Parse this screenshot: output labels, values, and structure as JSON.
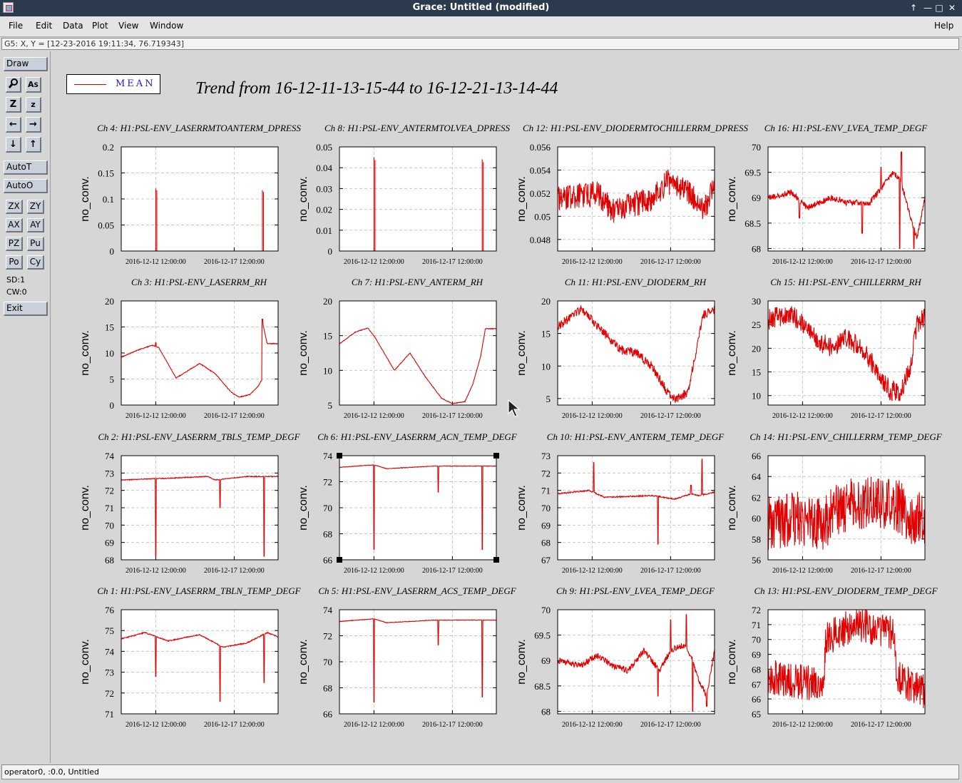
{
  "window": {
    "title": "Grace: Untitled (modified)",
    "controls": [
      "↑",
      "—",
      "□",
      "✕"
    ]
  },
  "menubar": {
    "items": [
      "File",
      "Edit",
      "Data",
      "Plot",
      "View",
      "Window"
    ],
    "help": "Help"
  },
  "locator": "G5: X, Y = [12-23-2016 19:11:34, 76.719343]",
  "toolbar": {
    "draw": "Draw",
    "icon_buttons": [
      "magnifier-icon",
      "text-tool-icon",
      "zoom-in-icon",
      "zoom-out-icon",
      "arrow-left-icon",
      "arrow-right-icon",
      "arrow-down-icon",
      "arrow-up-icon"
    ],
    "autot": "AutoT",
    "autoo": "AutoO",
    "small_buttons": [
      "ZX",
      "ZY",
      "AX",
      "AY",
      "PZ",
      "Pu",
      "Po",
      "Cy"
    ],
    "sd": "SD:1",
    "cw": "CW:0",
    "exit": "Exit"
  },
  "legend": {
    "label": "MEAN",
    "color": "#e00000"
  },
  "main_title": "Trend from 16-12-11-13-15-44 to 16-12-21-13-14-44",
  "status": "operator0, :0.0, Untitled",
  "chart_data": [
    {
      "type": "line",
      "title": "Ch 4: H1:PSL-ENV_LASERRMTOANTERM_DPRESS",
      "ylabel": "no_conv.",
      "ylim": [
        0,
        0.2
      ],
      "yticks": [
        "0",
        "0.05",
        "0.1",
        "0.15",
        "0.2"
      ],
      "xticks": [
        "2016-12-12 12:00:00",
        "2016-12-17 12:00:00"
      ],
      "pattern": "spikes",
      "base": 0,
      "spikes": [
        [
          0.22,
          0.12
        ],
        [
          0.9,
          0.117
        ]
      ]
    },
    {
      "type": "line",
      "title": "Ch 8: H1:PSL-ENV_ANTERMTOLVEA_DPRESS",
      "ylabel": "no_conv.",
      "ylim": [
        0,
        0.05
      ],
      "yticks": [
        "0",
        "0.01",
        "0.02",
        "0.03",
        "0.04",
        "0.05"
      ],
      "xticks": [
        "2016-12-12 12:00:00",
        "2016-12-17 12:00:00"
      ],
      "pattern": "spikes",
      "base": 0,
      "spikes": [
        [
          0.22,
          0.045
        ],
        [
          0.91,
          0.044
        ]
      ]
    },
    {
      "type": "line",
      "title": "Ch 12: H1:PSL-ENV_DIODERMTOCHILLERRM_DPRESS",
      "ylabel": "no_conv.",
      "ylim": [
        0.047,
        0.056
      ],
      "yticks": [
        "0.048",
        "0.05",
        "0.052",
        "0.054",
        "0.056"
      ],
      "xticks": [
        "2016-12-12 12:00:00",
        "2016-12-17 12:00:00"
      ],
      "pattern": "noisy",
      "noise": 0.0011,
      "keys": [
        [
          0,
          0.0515
        ],
        [
          0.25,
          0.052
        ],
        [
          0.35,
          0.0505
        ],
        [
          0.6,
          0.0515
        ],
        [
          0.7,
          0.053
        ],
        [
          0.85,
          0.052
        ],
        [
          0.93,
          0.0505
        ],
        [
          1,
          0.0525
        ]
      ]
    },
    {
      "type": "line",
      "title": "Ch 16: H1:PSL-ENV_LVEA_TEMP_DEGF",
      "ylabel": "no_conv.",
      "ylim": [
        67.95,
        70
      ],
      "yticks": [
        "68",
        "68.5",
        "69",
        "69.5",
        "70"
      ],
      "xticks": [
        "2016-12-12 12:00:00",
        "2016-12-17 12:00:00"
      ],
      "pattern": "jitter",
      "noise": 0.12,
      "keys": [
        [
          0,
          69
        ],
        [
          0.15,
          69.1
        ],
        [
          0.25,
          68.8
        ],
        [
          0.4,
          69
        ],
        [
          0.5,
          68.9
        ],
        [
          0.65,
          68.9
        ],
        [
          0.7,
          69.1
        ],
        [
          0.8,
          69.5
        ],
        [
          0.85,
          69.3
        ],
        [
          0.9,
          68.7
        ],
        [
          0.95,
          68.2
        ],
        [
          1,
          69
        ]
      ],
      "dips": [
        [
          0.2,
          68.6
        ],
        [
          0.6,
          68.3
        ],
        [
          0.84,
          68.0
        ],
        [
          0.93,
          68.0
        ]
      ],
      "peaks": [
        [
          0.85,
          69.9
        ],
        [
          0.72,
          69.6
        ]
      ]
    },
    {
      "type": "line",
      "title": "Ch 3: H1:PSL-ENV_LASERRM_RH",
      "ylabel": "no_conv.",
      "ylim": [
        0,
        20
      ],
      "yticks": [
        "0",
        "5",
        "10",
        "15",
        "20"
      ],
      "xticks": [
        "2016-12-12 12:00:00",
        "2016-12-17 12:00:00"
      ],
      "pattern": "smooth",
      "noise": 0.15,
      "keys": [
        [
          0,
          9.2
        ],
        [
          0.1,
          10.5
        ],
        [
          0.2,
          11.5
        ],
        [
          0.24,
          11
        ],
        [
          0.35,
          5.2
        ],
        [
          0.5,
          8
        ],
        [
          0.6,
          6
        ],
        [
          0.7,
          2.5
        ],
        [
          0.75,
          1.5
        ],
        [
          0.82,
          2
        ],
        [
          0.87,
          3.5
        ],
        [
          0.9,
          5
        ],
        [
          0.9,
          16
        ],
        [
          0.93,
          11.8
        ],
        [
          1,
          11.8
        ]
      ],
      "peaks": [
        [
          0.9,
          16.5
        ],
        [
          0.22,
          12
        ]
      ]
    },
    {
      "type": "line",
      "title": "Ch 7: H1:PSL-ENV_ANTERM_RH",
      "ylabel": "no_conv.",
      "ylim": [
        5,
        20
      ],
      "yticks": [
        "5",
        "10",
        "15",
        "20"
      ],
      "xticks": [
        "2016-12-12 12:00:00",
        "2016-12-17 12:00:00"
      ],
      "pattern": "smooth",
      "noise": 0.1,
      "keys": [
        [
          0,
          13.8
        ],
        [
          0.1,
          15.5
        ],
        [
          0.18,
          16.1
        ],
        [
          0.22,
          15
        ],
        [
          0.35,
          10
        ],
        [
          0.45,
          12.5
        ],
        [
          0.55,
          9
        ],
        [
          0.65,
          6
        ],
        [
          0.72,
          5.2
        ],
        [
          0.8,
          5.5
        ],
        [
          0.85,
          8
        ],
        [
          0.9,
          12
        ],
        [
          0.93,
          16
        ],
        [
          1,
          16
        ]
      ]
    },
    {
      "type": "line",
      "title": "Ch 11: H1:PSL-ENV_DIODERM_RH",
      "ylabel": "no_conv.",
      "ylim": [
        4,
        20
      ],
      "yticks": [
        "5",
        "10",
        "15",
        "20"
      ],
      "xticks": [
        "2016-12-12 12:00:00",
        "2016-12-17 12:00:00"
      ],
      "pattern": "noisy",
      "noise": 0.7,
      "keys": [
        [
          0,
          16
        ],
        [
          0.15,
          18.8
        ],
        [
          0.3,
          15
        ],
        [
          0.4,
          12.5
        ],
        [
          0.5,
          12
        ],
        [
          0.6,
          10
        ],
        [
          0.7,
          6
        ],
        [
          0.75,
          4.8
        ],
        [
          0.8,
          5.5
        ],
        [
          0.83,
          6
        ],
        [
          0.88,
          12
        ],
        [
          0.93,
          18
        ],
        [
          1,
          18.5
        ]
      ]
    },
    {
      "type": "line",
      "title": "Ch 15: H1:PSL-ENV_CHILLERRM_RH",
      "ylabel": "no_conv.",
      "ylim": [
        8,
        30
      ],
      "yticks": [
        "10",
        "15",
        "20",
        "25",
        "30"
      ],
      "xticks": [
        "2016-12-12 12:00:00",
        "2016-12-17 12:00:00"
      ],
      "pattern": "noisy",
      "noise": 2.2,
      "keys": [
        [
          0,
          26
        ],
        [
          0.15,
          27.5
        ],
        [
          0.3,
          22
        ],
        [
          0.4,
          20
        ],
        [
          0.5,
          22
        ],
        [
          0.6,
          20
        ],
        [
          0.7,
          15
        ],
        [
          0.78,
          11
        ],
        [
          0.85,
          11
        ],
        [
          0.9,
          15
        ],
        [
          0.95,
          25
        ],
        [
          1,
          26.5
        ]
      ]
    },
    {
      "type": "line",
      "title": "Ch 2: H1:PSL-ENV_LASERRM_TBLS_TEMP_DEGF",
      "ylabel": "no_conv.",
      "ylim": [
        68,
        74
      ],
      "yticks": [
        "68",
        "69",
        "70",
        "71",
        "72",
        "73",
        "74"
      ],
      "xticks": [
        "2016-12-12 12:00:00",
        "2016-12-17 12:00:00"
      ],
      "pattern": "jitter",
      "noise": 0.05,
      "keys": [
        [
          0,
          72.6
        ],
        [
          0.3,
          72.7
        ],
        [
          0.55,
          72.8
        ],
        [
          0.6,
          72.6
        ],
        [
          0.8,
          72.8
        ],
        [
          1,
          72.8
        ]
      ],
      "dips": [
        [
          0.22,
          68.2
        ],
        [
          0.63,
          71.0
        ],
        [
          0.91,
          68.2
        ]
      ],
      "peaks": []
    },
    {
      "type": "line",
      "title": "Ch 6: H1:PSL-ENV_LASERRM_ACN_TEMP_DEGF",
      "ylabel": "no_conv.",
      "ylim": [
        66,
        74
      ],
      "yticks": [
        "66",
        "68",
        "70",
        "72",
        "74"
      ],
      "xticks": [
        "2016-12-12 12:00:00",
        "2016-12-17 12:00:00"
      ],
      "pattern": "jitter",
      "noise": 0.04,
      "keys": [
        [
          0,
          73.1
        ],
        [
          0.22,
          73.3
        ],
        [
          0.3,
          73.0
        ],
        [
          0.6,
          73.2
        ],
        [
          0.9,
          73.2
        ],
        [
          1,
          73.2
        ]
      ],
      "dips": [
        [
          0.22,
          66.8
        ],
        [
          0.63,
          71.2
        ],
        [
          0.91,
          66.8
        ]
      ],
      "peaks": []
    },
    {
      "type": "line",
      "title": "Ch 10: H1:PSL-ENV_ANTERM_TEMP_DEGF",
      "ylabel": "no_conv.",
      "ylim": [
        67,
        73
      ],
      "yticks": [
        "67",
        "68",
        "69",
        "70",
        "71",
        "72",
        "73"
      ],
      "xticks": [
        "2016-12-12 12:00:00",
        "2016-12-17 12:00:00"
      ],
      "pattern": "jitter",
      "noise": 0.07,
      "keys": [
        [
          0,
          70.8
        ],
        [
          0.2,
          71
        ],
        [
          0.3,
          70.6
        ],
        [
          0.6,
          70.7
        ],
        [
          0.75,
          70.5
        ],
        [
          0.85,
          70.8
        ],
        [
          0.9,
          70.7
        ],
        [
          1,
          70.9
        ]
      ],
      "dips": [
        [
          0.64,
          67.9
        ]
      ],
      "peaks": [
        [
          0.23,
          72.6
        ],
        [
          0.92,
          72.8
        ],
        [
          0.85,
          71.3
        ]
      ]
    },
    {
      "type": "line",
      "title": "Ch 14: H1:PSL-ENV_CHILLERRM_TEMP_DEGF",
      "ylabel": "no_conv.",
      "ylim": [
        56,
        66
      ],
      "yticks": [
        "56",
        "58",
        "60",
        "62",
        "64",
        "66"
      ],
      "xticks": [
        "2016-12-12 12:00:00",
        "2016-12-17 12:00:00"
      ],
      "pattern": "noisy",
      "noise": 2.6,
      "keys": [
        [
          0,
          59.5
        ],
        [
          0.2,
          60
        ],
        [
          0.35,
          59.5
        ],
        [
          0.45,
          61
        ],
        [
          0.6,
          61.5
        ],
        [
          0.7,
          61.5
        ],
        [
          0.85,
          61
        ],
        [
          0.92,
          60
        ],
        [
          1,
          60
        ]
      ]
    },
    {
      "type": "line",
      "title": "Ch 1: H1:PSL-ENV_LASERRM_TBLN_TEMP_DEGF",
      "ylabel": "no_conv.",
      "ylim": [
        71,
        76
      ],
      "yticks": [
        "71",
        "72",
        "73",
        "74",
        "75",
        "76"
      ],
      "xticks": [
        "2016-12-12 12:00:00",
        "2016-12-17 12:00:00"
      ],
      "pattern": "jitter",
      "noise": 0.05,
      "keys": [
        [
          0,
          74.6
        ],
        [
          0.15,
          74.9
        ],
        [
          0.3,
          74.5
        ],
        [
          0.5,
          74.8
        ],
        [
          0.65,
          74.2
        ],
        [
          0.8,
          74.4
        ],
        [
          0.93,
          74.9
        ],
        [
          1,
          74.7
        ]
      ],
      "dips": [
        [
          0.22,
          72.8
        ],
        [
          0.63,
          71.6
        ],
        [
          0.91,
          72.5
        ]
      ],
      "peaks": []
    },
    {
      "type": "line",
      "title": "Ch 5: H1:PSL-ENV_LASERRM_ACS_TEMP_DEGF",
      "ylabel": "no_conv.",
      "ylim": [
        66,
        74
      ],
      "yticks": [
        "66",
        "68",
        "70",
        "72",
        "74"
      ],
      "xticks": [
        "2016-12-12 12:00:00",
        "2016-12-17 12:00:00"
      ],
      "pattern": "jitter",
      "noise": 0.04,
      "keys": [
        [
          0,
          73.1
        ],
        [
          0.22,
          73.3
        ],
        [
          0.3,
          73.0
        ],
        [
          0.6,
          73.2
        ],
        [
          0.9,
          73.2
        ],
        [
          1,
          73.2
        ]
      ],
      "dips": [
        [
          0.22,
          66.9
        ],
        [
          0.63,
          71.3
        ],
        [
          0.91,
          67.3
        ]
      ],
      "peaks": []
    },
    {
      "type": "line",
      "title": "Ch 9: H1:PSL-ENV_LVEA_TEMP_DEGF",
      "ylabel": "no_conv.",
      "ylim": [
        67.95,
        70
      ],
      "yticks": [
        "68",
        "68.5",
        "69",
        "69.5",
        "70"
      ],
      "xticks": [
        "2016-12-12 12:00:00",
        "2016-12-17 12:00:00"
      ],
      "pattern": "jitter",
      "noise": 0.12,
      "keys": [
        [
          0,
          69
        ],
        [
          0.15,
          68.9
        ],
        [
          0.25,
          69.1
        ],
        [
          0.35,
          68.9
        ],
        [
          0.45,
          68.8
        ],
        [
          0.55,
          69.2
        ],
        [
          0.65,
          68.8
        ],
        [
          0.72,
          69.2
        ],
        [
          0.8,
          69.3
        ],
        [
          0.85,
          69.1
        ],
        [
          0.9,
          68.6
        ],
        [
          0.95,
          68.3
        ],
        [
          1,
          69.2
        ]
      ],
      "dips": [
        [
          0.64,
          68.3
        ],
        [
          0.86,
          68.0
        ],
        [
          0.95,
          68.1
        ]
      ],
      "peaks": [
        [
          0.72,
          69.8
        ],
        [
          0.82,
          69.9
        ]
      ]
    },
    {
      "type": "line",
      "title": "Ch 13: H1:PSL-ENV_DIODERM_TEMP_DEGF",
      "ylabel": "no_conv.",
      "ylim": [
        65,
        72
      ],
      "yticks": [
        "65",
        "66",
        "67",
        "68",
        "69",
        "70",
        "71",
        "72"
      ],
      "xticks": [
        "2016-12-12 12:00:00",
        "2016-12-17 12:00:00"
      ],
      "pattern": "noisy",
      "noise": 1.2,
      "keys": [
        [
          0,
          67.5
        ],
        [
          0.3,
          67
        ],
        [
          0.35,
          67
        ],
        [
          0.37,
          70
        ],
        [
          0.5,
          70.8
        ],
        [
          0.62,
          71
        ],
        [
          0.7,
          70.6
        ],
        [
          0.8,
          70.4
        ],
        [
          0.82,
          67.5
        ],
        [
          0.9,
          67
        ],
        [
          1,
          66.5
        ]
      ]
    }
  ]
}
